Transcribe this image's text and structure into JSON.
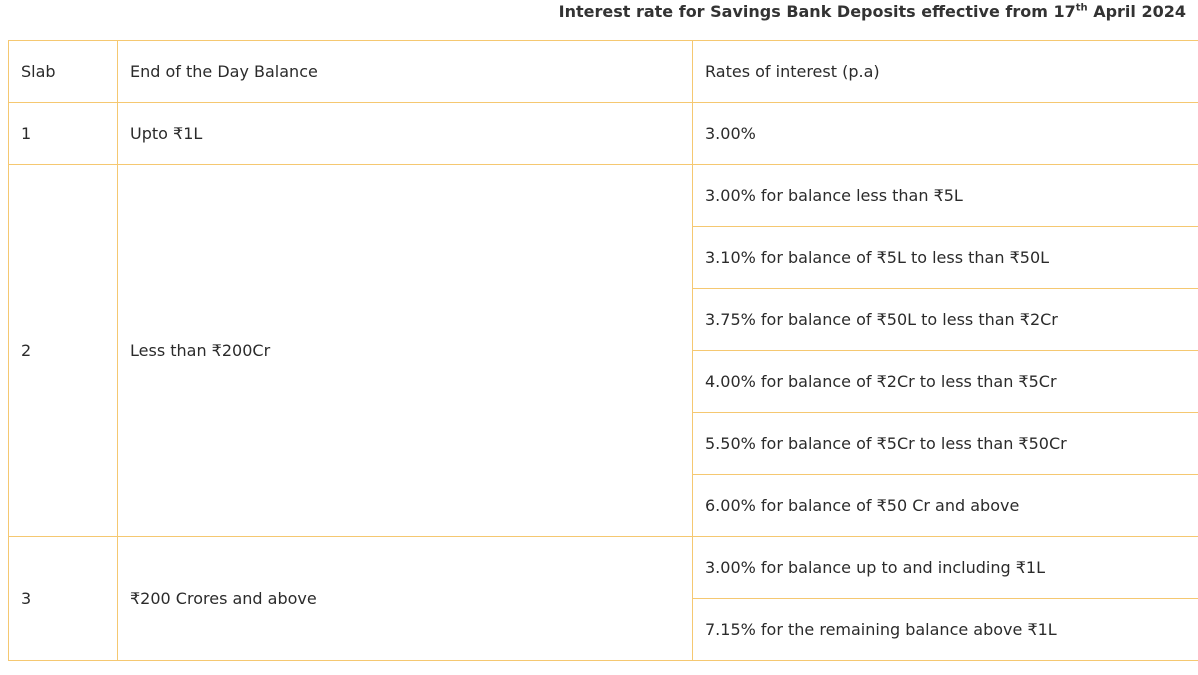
{
  "header": {
    "title_parts": [
      "Interest rate for Savings Bank Deposits effective from 17",
      "th",
      " April 2024"
    ]
  },
  "table": {
    "columns": [
      "Slab",
      "End of the Day Balance",
      "Rates of interest (p.a)"
    ],
    "rows": [
      {
        "slab": "1",
        "balance": "Upto ₹1L",
        "rates": [
          "3.00%"
        ]
      },
      {
        "slab": "2",
        "balance": "Less than ₹200Cr",
        "rates": [
          "3.00% for balance less than ₹5L",
          "3.10% for balance of ₹5L to less than ₹50L",
          "3.75% for balance of ₹50L to less than ₹2Cr",
          "4.00% for balance of ₹2Cr to less than ₹5Cr",
          "5.50% for balance of ₹5Cr to less than ₹50Cr",
          "6.00% for balance of ₹50 Cr and above"
        ]
      },
      {
        "slab": "3",
        "balance": "₹200 Crores and above",
        "rates": [
          "3.00% for balance up to and including ₹1L",
          "7.15% for the remaining balance above ₹1L"
        ]
      }
    ]
  }
}
